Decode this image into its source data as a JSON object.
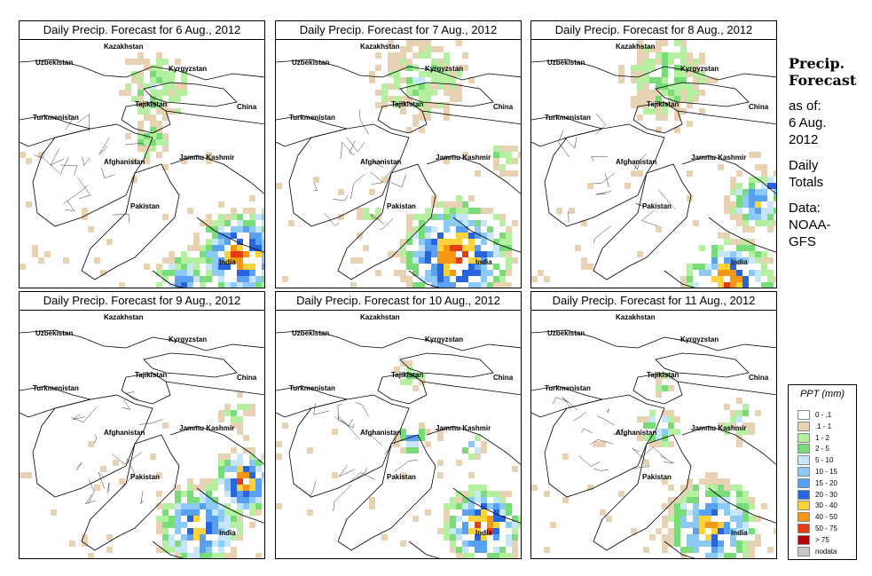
{
  "panels": [
    {
      "title": "Daily Precip. Forecast for  6 Aug., 2012"
    },
    {
      "title": "Daily Precip. Forecast for  7 Aug., 2012"
    },
    {
      "title": "Daily Precip. Forecast for  8 Aug., 2012"
    },
    {
      "title": "Daily Precip. Forecast for  9 Aug., 2012"
    },
    {
      "title": "Daily Precip. Forecast for  10 Aug., 2012"
    },
    {
      "title": "Daily Precip. Forecast for  11 Aug., 2012"
    }
  ],
  "map_labels": {
    "kazakhstan": "Kazakhstan",
    "uzbekistan": "Uzbekistan",
    "kyrgyzstan": "Kyrgyzstan",
    "tajikistan": "Tajikistan",
    "china": "China",
    "turkmenistan": "Turkmenistan",
    "afghanistan": "Afghanistan",
    "jammu_kashmir": "Jammu Kashmir",
    "pakistan": "Pakistan",
    "india": "India"
  },
  "side_info": {
    "title_line1": "Precip.",
    "title_line2": "Forecast",
    "asof_line1": "as of:",
    "asof_line2": "6 Aug.",
    "asof_line3": "2012",
    "totals_line1": "Daily",
    "totals_line2": "Totals",
    "data_line1": "Data:",
    "data_line2": "NOAA-",
    "data_line3": "GFS"
  },
  "legend": {
    "title": "PPT (mm)",
    "items": [
      {
        "label": "0 - .1",
        "color": "#ffffff"
      },
      {
        "label": ".1 - 1",
        "color": "#e8d2b4"
      },
      {
        "label": "1 - 2",
        "color": "#b4f0a0"
      },
      {
        "label": "2 - 5",
        "color": "#78dc78"
      },
      {
        "label": "5 - 10",
        "color": "#c8e6fa"
      },
      {
        "label": "10 - 15",
        "color": "#8ccaf5"
      },
      {
        "label": "15 - 20",
        "color": "#5aa0f0"
      },
      {
        "label": "20 - 30",
        "color": "#2864dc"
      },
      {
        "label": "30 - 40",
        "color": "#fad23c"
      },
      {
        "label": "40 - 50",
        "color": "#f59614"
      },
      {
        "label": "50 - 75",
        "color": "#e63c14"
      },
      {
        "label": "> 75",
        "color": "#b40000"
      },
      {
        "label": "nodata",
        "color": "#c8c8c8"
      }
    ]
  }
}
